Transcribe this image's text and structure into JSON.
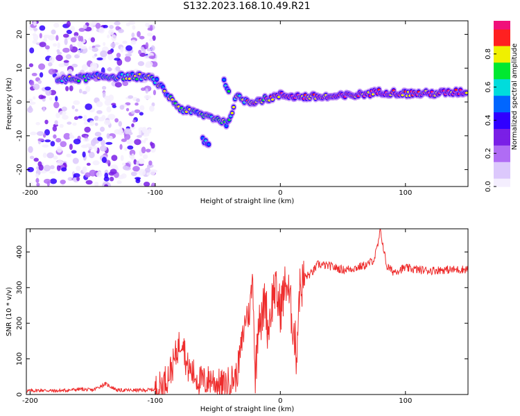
{
  "title": "S132.2023.168.10.49.R21",
  "colors": {
    "snr_line": "#ee2c2c",
    "colormap": [
      "#f4eefe",
      "#dcc8fc",
      "#b06cf4",
      "#7a1fe6",
      "#3000ff",
      "#0066ff",
      "#00dcdc",
      "#00e830",
      "#f0f000",
      "#ff2020",
      "#f0107a"
    ]
  },
  "chart_data": [
    {
      "type": "heatmap",
      "title": "",
      "xlabel": "Height of straight line (km)",
      "ylabel": "Frequency (Hz)",
      "xlim": [
        -203,
        150
      ],
      "ylim": [
        -25,
        24
      ],
      "x_ticks": [
        -200,
        -100,
        0,
        100
      ],
      "y_ticks": [
        -20,
        -10,
        0,
        10,
        20
      ],
      "colorbar": {
        "label": "Normalized spectral amplitude",
        "range": [
          0.0,
          1.0
        ],
        "ticks": [
          "0.0",
          "0.2",
          "0.4",
          "0.6",
          "0.8"
        ]
      },
      "ridge_track": [
        {
          "x": -178,
          "y": 6.5
        },
        {
          "x": -160,
          "y": 7.0
        },
        {
          "x": -145,
          "y": 7.5
        },
        {
          "x": -130,
          "y": 7.5
        },
        {
          "x": -110,
          "y": 7.5
        },
        {
          "x": -100,
          "y": 6.5
        },
        {
          "x": -90,
          "y": 2.0
        },
        {
          "x": -80,
          "y": -2.0
        },
        {
          "x": -70,
          "y": -3.0
        },
        {
          "x": -60,
          "y": -4.0
        },
        {
          "x": -50,
          "y": -5.0
        },
        {
          "x": -42,
          "y": -6.5
        },
        {
          "x": -35,
          "y": 1.5
        },
        {
          "x": -25,
          "y": 0.0
        },
        {
          "x": -10,
          "y": 1.0
        },
        {
          "x": 0,
          "y": 2.0
        },
        {
          "x": 20,
          "y": 1.5
        },
        {
          "x": 40,
          "y": 1.5
        },
        {
          "x": 60,
          "y": 2.0
        },
        {
          "x": 80,
          "y": 3.0
        },
        {
          "x": 100,
          "y": 2.5
        },
        {
          "x": 120,
          "y": 2.5
        },
        {
          "x": 150,
          "y": 3.0
        }
      ],
      "side_branches": [
        {
          "x": -62,
          "y": -11.0
        },
        {
          "x": -56,
          "y": -12.5
        },
        {
          "x": -45,
          "y": 6.0
        },
        {
          "x": -40,
          "y": 3.0
        }
      ],
      "noise_band_x": [
        -200,
        -100
      ]
    },
    {
      "type": "line",
      "title": "",
      "xlabel": "Height of straight line (km)",
      "ylabel": "SNR (10 * v/v)",
      "xlim": [
        -203,
        150
      ],
      "ylim": [
        0,
        465
      ],
      "x_ticks": [
        -200,
        -100,
        0,
        100
      ],
      "y_ticks": [
        0,
        100,
        200,
        300,
        400
      ],
      "series": [
        {
          "x": [
            -203,
            -190,
            -180,
            -170,
            -160,
            -150,
            -140,
            -130,
            -120,
            -110,
            -100,
            -95,
            -90,
            -85,
            -82,
            -78,
            -75,
            -70,
            -65,
            -60,
            -55,
            -50,
            -45,
            -40,
            -35,
            -30,
            -27,
            -25,
            -22,
            -20,
            -17,
            -15,
            -12,
            -10,
            -5,
            0,
            5,
            10,
            13,
            15,
            20,
            25,
            30,
            40,
            50,
            60,
            70,
            75,
            78,
            80,
            85,
            90,
            100,
            110,
            120,
            130,
            140,
            150
          ],
          "y": [
            10,
            12,
            10,
            12,
            15,
            12,
            30,
            12,
            12,
            12,
            14,
            25,
            50,
            90,
            130,
            165,
            80,
            60,
            40,
            35,
            45,
            30,
            25,
            40,
            50,
            160,
            230,
            220,
            330,
            40,
            250,
            200,
            280,
            180,
            300,
            240,
            320,
            200,
            110,
            290,
            330,
            340,
            365,
            360,
            350,
            355,
            365,
            380,
            420,
            460,
            360,
            345,
            355,
            350,
            348,
            350,
            350,
            352
          ]
        }
      ]
    }
  ]
}
